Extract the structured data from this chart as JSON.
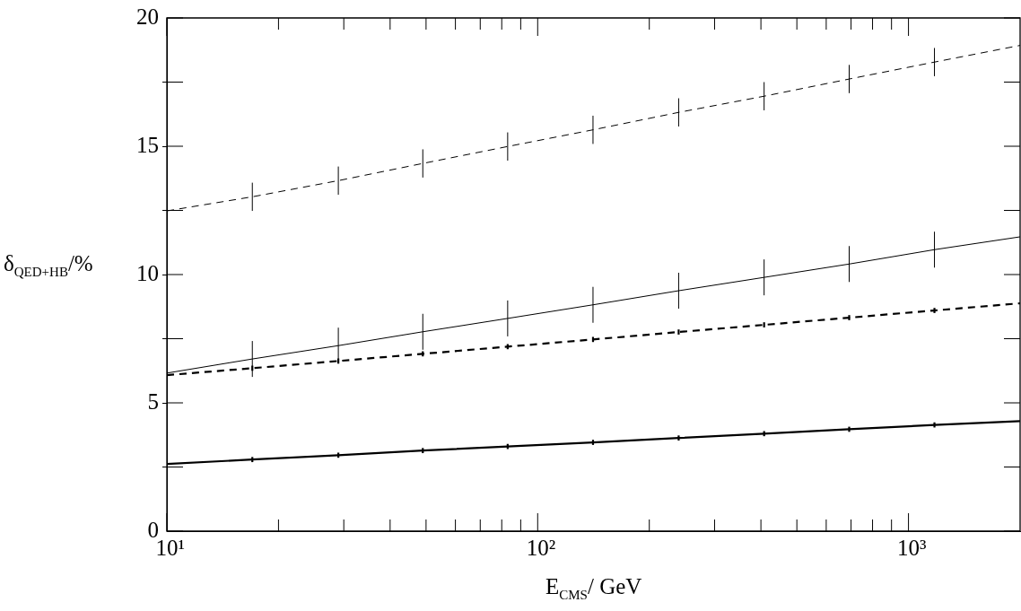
{
  "chart_data": {
    "type": "line",
    "xlabel": "E$_{CMS}$/ GeV",
    "ylabel": "δ$_{QED+HB}$/%",
    "log": "x",
    "grid": false,
    "legend": false,
    "marker": "none",
    "xlim": [
      10,
      2000
    ],
    "ylim": [
      0,
      20
    ],
    "xticks": [
      {
        "value": 10,
        "label": "10¹"
      },
      {
        "value": 20,
        "label": null
      },
      {
        "value": 30,
        "label": null
      },
      {
        "value": 40,
        "label": null
      },
      {
        "value": 50,
        "label": null
      },
      {
        "value": 60,
        "label": null
      },
      {
        "value": 70,
        "label": null
      },
      {
        "value": 80,
        "label": null
      },
      {
        "value": 90,
        "label": null
      },
      {
        "value": 100,
        "label": "10²"
      },
      {
        "value": 200,
        "label": null
      },
      {
        "value": 300,
        "label": null
      },
      {
        "value": 400,
        "label": null
      },
      {
        "value": 500,
        "label": null
      },
      {
        "value": 600,
        "label": null
      },
      {
        "value": 700,
        "label": null
      },
      {
        "value": 800,
        "label": null
      },
      {
        "value": 900,
        "label": null
      },
      {
        "value": 1000,
        "label": "10³"
      }
    ],
    "yticks": [
      0,
      {
        "value": 2.5,
        "label": null
      },
      5,
      {
        "value": 7.5,
        "label": null
      },
      10,
      {
        "value": 12.5,
        "label": null
      },
      15,
      {
        "value": 17.5,
        "label": null
      },
      20
    ],
    "x": [
      10,
      17,
      29,
      49,
      83,
      141,
      240,
      408,
      692,
      1175,
      2000
    ],
    "series": [
      {
        "color": "#000000",
        "line_style": "dashed",
        "values": [
          12.48,
          13.03,
          13.66,
          14.33,
          14.99,
          15.64,
          16.32,
          16.95,
          17.62,
          18.28,
          18.93
        ],
        "errors": [
          null,
          0.55,
          0.55,
          0.55,
          0.55,
          0.55,
          0.55,
          0.55,
          0.55,
          0.55,
          null
        ]
      },
      {
        "color": "#000000",
        "line_style": "solid",
        "values": [
          6.16,
          6.71,
          7.23,
          7.77,
          8.29,
          8.82,
          9.37,
          9.89,
          10.41,
          10.97,
          11.47
        ],
        "errors": [
          null,
          0.7,
          0.7,
          0.7,
          0.7,
          0.7,
          0.7,
          0.7,
          0.7,
          0.7,
          null
        ]
      },
      {
        "color": "#000000",
        "line_style": "dashed",
        "values": [
          6.08,
          6.35,
          6.63,
          6.91,
          7.19,
          7.47,
          7.76,
          8.04,
          8.32,
          8.6,
          8.88
        ],
        "errors": [
          null,
          0.1,
          0.1,
          0.1,
          0.1,
          0.1,
          0.1,
          0.1,
          0.1,
          0.1,
          null
        ]
      },
      {
        "color": "#000000",
        "line_style": "solid",
        "values": [
          2.62,
          2.79,
          2.96,
          3.14,
          3.3,
          3.46,
          3.63,
          3.8,
          3.97,
          4.14,
          4.29
        ],
        "errors": [
          null,
          0.1,
          0.1,
          0.1,
          0.1,
          0.1,
          0.1,
          0.1,
          0.1,
          0.1,
          null
        ]
      }
    ]
  }
}
